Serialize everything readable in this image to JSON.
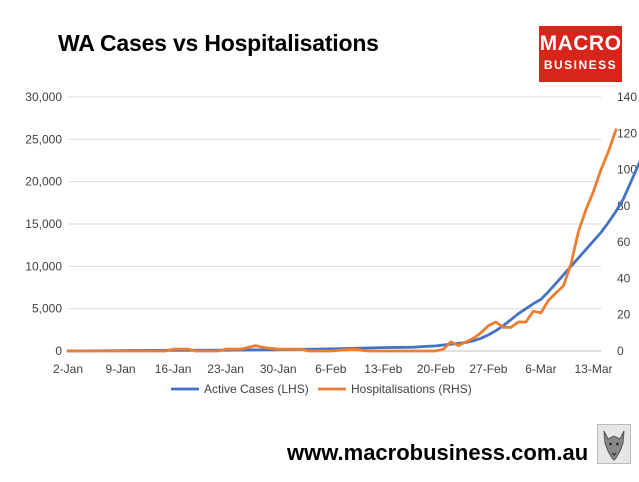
{
  "header": {
    "title": "WA Cases vs Hospitalisations"
  },
  "logo": {
    "line1": "MACRO",
    "line2": "BUSINESS",
    "color": "#d9241b",
    "icon": "wolf-icon"
  },
  "footer": {
    "url": "www.macrobusiness.com.au"
  },
  "chart_data": {
    "type": "line",
    "categories": [
      "2-Jan",
      "9-Jan",
      "16-Jan",
      "23-Jan",
      "30-Jan",
      "6-Feb",
      "13-Feb",
      "20-Feb",
      "27-Feb",
      "6-Mar",
      "13-Mar"
    ],
    "x_start": "2-Jan",
    "x_end": "13-Mar",
    "ylim_left": [
      0,
      30000
    ],
    "yticks_left": [
      "0",
      "5,000",
      "10,000",
      "15,000",
      "20,000",
      "25,000",
      "30,000"
    ],
    "ylim_right": [
      0,
      140
    ],
    "yticks_right": [
      "0",
      "20",
      "40",
      "60",
      "80",
      "100",
      "120",
      "140"
    ],
    "grid": true,
    "legend_position": "bottom",
    "series": [
      {
        "name": "Active Cases (LHS)",
        "axis": "left",
        "color": "#4472c4",
        "points": [
          [
            0,
            0
          ],
          [
            7,
            50
          ],
          [
            14,
            80
          ],
          [
            21,
            100
          ],
          [
            28,
            150
          ],
          [
            35,
            250
          ],
          [
            42,
            400
          ],
          [
            46,
            450
          ],
          [
            49,
            600
          ],
          [
            51,
            800
          ],
          [
            53,
            1000
          ],
          [
            54,
            1200
          ],
          [
            55,
            1500
          ],
          [
            56,
            1900
          ],
          [
            57,
            2400
          ],
          [
            58,
            3000
          ],
          [
            59,
            3700
          ],
          [
            60,
            4400
          ],
          [
            61,
            5000
          ],
          [
            62,
            5600
          ],
          [
            63,
            6100
          ],
          [
            64,
            7000
          ],
          [
            65,
            8000
          ],
          [
            66,
            9000
          ],
          [
            67,
            10000
          ],
          [
            68,
            11000
          ],
          [
            69,
            12000
          ],
          [
            70,
            13000
          ],
          [
            71,
            14000
          ],
          [
            72,
            15200
          ],
          [
            73,
            16500
          ],
          [
            74,
            18000
          ],
          [
            75,
            20000
          ],
          [
            76,
            22000
          ],
          [
            77,
            24200
          ]
        ]
      },
      {
        "name": "Hospitalisations (RHS)",
        "axis": "right",
        "color": "#ed7d31",
        "points": [
          [
            0,
            0
          ],
          [
            7,
            0
          ],
          [
            13,
            0
          ],
          [
            14,
            1
          ],
          [
            16,
            1
          ],
          [
            17,
            0
          ],
          [
            20,
            0
          ],
          [
            21,
            1
          ],
          [
            23,
            1
          ],
          [
            24,
            2
          ],
          [
            25,
            3
          ],
          [
            26,
            2
          ],
          [
            28,
            1
          ],
          [
            31,
            1
          ],
          [
            32,
            0
          ],
          [
            35,
            0
          ],
          [
            38,
            1
          ],
          [
            40,
            0
          ],
          [
            45,
            0
          ],
          [
            49,
            0
          ],
          [
            50,
            1
          ],
          [
            51,
            5
          ],
          [
            52,
            3
          ],
          [
            53,
            5
          ],
          [
            54,
            7
          ],
          [
            55,
            10
          ],
          [
            56,
            14
          ],
          [
            57,
            16
          ],
          [
            58,
            13
          ],
          [
            59,
            13
          ],
          [
            60,
            16
          ],
          [
            61,
            16
          ],
          [
            62,
            22
          ],
          [
            63,
            21
          ],
          [
            64,
            28
          ],
          [
            65,
            32
          ],
          [
            66,
            36
          ],
          [
            67,
            48
          ],
          [
            68,
            66
          ],
          [
            69,
            78
          ],
          [
            70,
            88
          ],
          [
            71,
            100
          ],
          [
            72,
            110
          ],
          [
            73,
            122
          ]
        ]
      }
    ]
  }
}
